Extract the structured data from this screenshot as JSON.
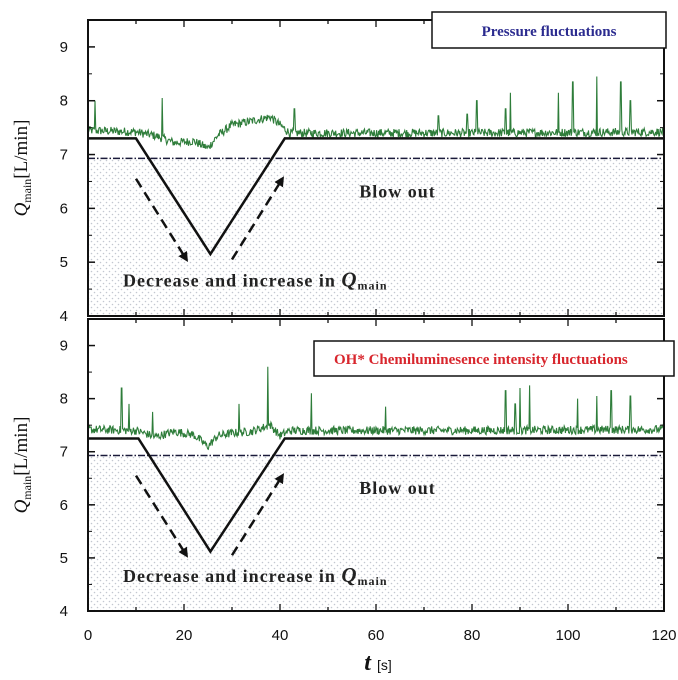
{
  "colors": {
    "signal": "#2e7d3a",
    "trajectory": "#111111",
    "blowout_line": "#1a1a3a",
    "pressure_title": "#2b2b8f",
    "oh_title": "#d8262d",
    "dots": "#c9ccd4"
  },
  "x_axis": {
    "label_main": "t",
    "label_unit": "[s]",
    "ticks": [
      "0",
      "20",
      "40",
      "60",
      "80",
      "100",
      "120"
    ],
    "range": [
      0,
      120
    ]
  },
  "chart_data": [
    {
      "type": "line",
      "legend": "Pressure fluctuations",
      "ylabel_q": "Q",
      "ylabel_sub": "main",
      "ylabel_unit": "[L/min]",
      "xlim": [
        0,
        120
      ],
      "ylim": [
        4,
        9.5
      ],
      "y_ticks": [
        "4",
        "5",
        "6",
        "7",
        "8",
        "9"
      ],
      "blowout_threshold": 6.93,
      "blowout_label": "Blow out",
      "decrease_label": "Decrease and increase in ",
      "decrease_label_q": "Q",
      "decrease_label_sub": "main",
      "flow_rate_path": {
        "x": [
          0,
          10,
          25.5,
          41,
          120
        ],
        "y": [
          7.3,
          7.3,
          5.15,
          7.3,
          7.3
        ]
      },
      "arrow_down": {
        "from": [
          10,
          6.55
        ],
        "to": [
          20.5,
          5.05
        ]
      },
      "arrow_up": {
        "from": [
          30,
          5.05
        ],
        "to": [
          40.5,
          6.55
        ]
      },
      "signal_base": [
        [
          0,
          7.45
        ],
        [
          10,
          7.42
        ],
        [
          14,
          7.35
        ],
        [
          18,
          7.22
        ],
        [
          22,
          7.25
        ],
        [
          25,
          7.12
        ],
        [
          27,
          7.35
        ],
        [
          30,
          7.55
        ],
        [
          34,
          7.62
        ],
        [
          38,
          7.7
        ],
        [
          40,
          7.55
        ],
        [
          42,
          7.4
        ],
        [
          60,
          7.4
        ],
        [
          80,
          7.4
        ],
        [
          120,
          7.42
        ]
      ],
      "signal_spikes": [
        [
          1.5,
          8.0
        ],
        [
          15.5,
          8.05
        ],
        [
          43,
          7.85
        ],
        [
          73,
          7.72
        ],
        [
          79,
          7.75
        ],
        [
          81,
          8.0
        ],
        [
          87,
          7.85
        ],
        [
          88,
          8.15
        ],
        [
          98,
          8.15
        ],
        [
          101,
          8.35
        ],
        [
          106,
          8.45
        ],
        [
          111,
          8.35
        ],
        [
          113,
          8.0
        ]
      ]
    },
    {
      "type": "line",
      "legend": "OH* Chemiluminesence intensity fluctuations",
      "ylabel_q": "Q",
      "ylabel_sub": "main",
      "ylabel_unit": "[L/min]",
      "xlim": [
        0,
        120
      ],
      "ylim": [
        4,
        9.5
      ],
      "y_ticks": [
        "4",
        "5",
        "6",
        "7",
        "8",
        "9"
      ],
      "blowout_threshold": 6.93,
      "blowout_label": "Blow out",
      "decrease_label": "Decrease and increase in ",
      "decrease_label_q": "Q",
      "decrease_label_sub": "main",
      "flow_rate_path": {
        "x": [
          0,
          10.5,
          25.5,
          41,
          120
        ],
        "y": [
          7.25,
          7.25,
          5.12,
          7.25,
          7.25
        ]
      },
      "arrow_down": {
        "from": [
          10,
          6.55
        ],
        "to": [
          20.5,
          5.05
        ]
      },
      "arrow_up": {
        "from": [
          30,
          5.05
        ],
        "to": [
          40.5,
          6.55
        ]
      },
      "signal_base": [
        [
          0,
          7.42
        ],
        [
          10,
          7.4
        ],
        [
          14,
          7.28
        ],
        [
          18,
          7.38
        ],
        [
          22,
          7.32
        ],
        [
          25,
          7.1
        ],
        [
          27,
          7.3
        ],
        [
          30,
          7.35
        ],
        [
          34,
          7.38
        ],
        [
          38,
          7.5
        ],
        [
          40,
          7.3
        ],
        [
          42,
          7.4
        ],
        [
          60,
          7.4
        ],
        [
          80,
          7.4
        ],
        [
          120,
          7.42
        ]
      ],
      "signal_spikes": [
        [
          7,
          8.2
        ],
        [
          8.5,
          7.9
        ],
        [
          13.5,
          7.75
        ],
        [
          31.5,
          7.9
        ],
        [
          37.5,
          8.6
        ],
        [
          46.5,
          8.1
        ],
        [
          62,
          7.85
        ],
        [
          87,
          8.15
        ],
        [
          89,
          7.9
        ],
        [
          90,
          8.2
        ],
        [
          92,
          8.25
        ],
        [
          102,
          8.0
        ],
        [
          106,
          8.05
        ],
        [
          109,
          8.15
        ],
        [
          113,
          8.05
        ]
      ]
    }
  ]
}
